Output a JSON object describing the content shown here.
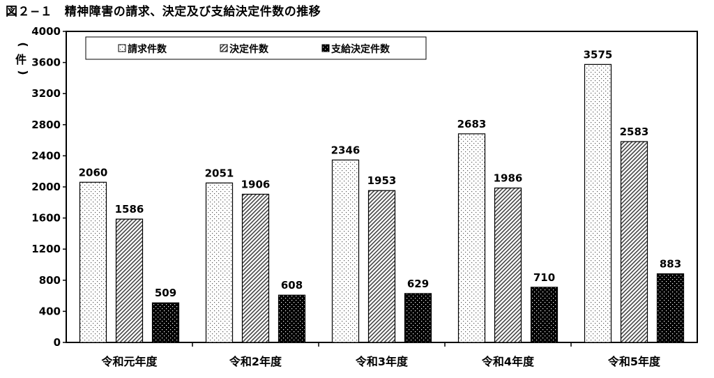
{
  "title": "図２−１　精神障害の請求、決定及び支給決定件数の推移",
  "chart_data": {
    "type": "bar",
    "title": "図２−１　精神障害の請求、決定及び支給決定件数の推移",
    "ylabel": "件",
    "xlabel": "",
    "ylim": [
      0,
      4000
    ],
    "yticks": [
      0,
      400,
      800,
      1200,
      1600,
      2000,
      2400,
      2800,
      3200,
      3600,
      4000
    ],
    "categories": [
      "令和元年度",
      "令和2年度",
      "令和3年度",
      "令和4年度",
      "令和5年度"
    ],
    "series": [
      {
        "name": "請求件数",
        "pattern": "dots-sparse",
        "values": [
          2060,
          2051,
          2346,
          2683,
          3575
        ]
      },
      {
        "name": "決定件数",
        "pattern": "diagonal-hatch",
        "values": [
          1586,
          1906,
          1953,
          1986,
          2583
        ]
      },
      {
        "name": "支給決定件数",
        "pattern": "black-dotted",
        "values": [
          509,
          608,
          629,
          710,
          883
        ]
      }
    ],
    "legend_position": "top-left",
    "grid": false
  }
}
